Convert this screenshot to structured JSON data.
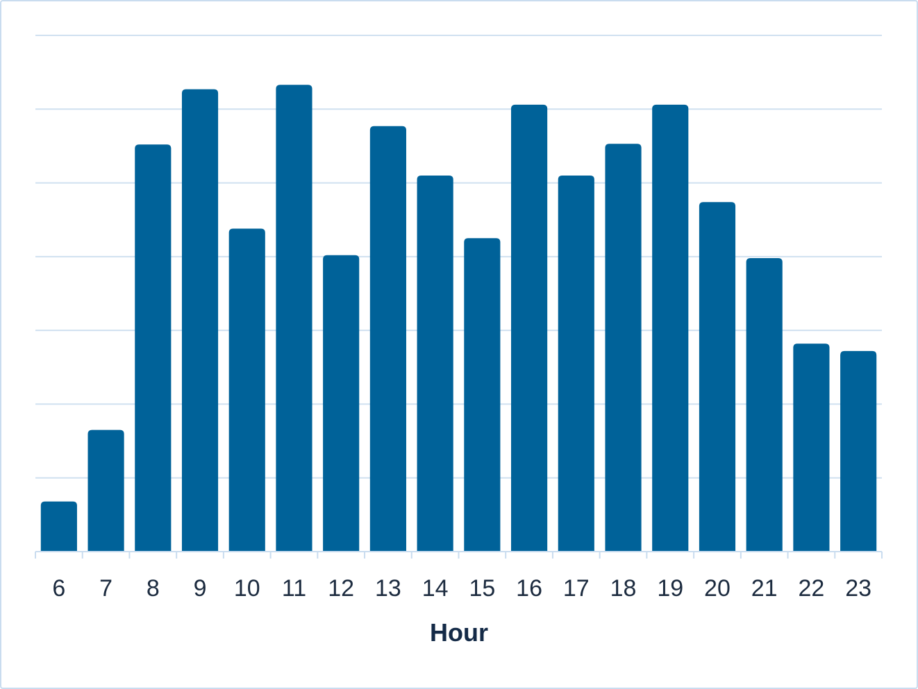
{
  "colors": {
    "bar": "#006299",
    "grid": "#cfe0f0",
    "axis": "#c9dcef",
    "frame": "#c9dcef"
  },
  "chart_data": {
    "type": "bar",
    "title": "",
    "xlabel": "Hour",
    "ylabel": "",
    "categories": [
      "6",
      "7",
      "8",
      "9",
      "10",
      "11",
      "12",
      "13",
      "14",
      "15",
      "16",
      "17",
      "18",
      "19",
      "20",
      "21",
      "22",
      "23"
    ],
    "series": [
      {
        "values": [
          68,
          165,
          552,
          627,
          438,
          633,
          402,
          577,
          510,
          425,
          606,
          510,
          553,
          606,
          474,
          398,
          282,
          272
        ]
      }
    ],
    "ylim": [
      0,
      700
    ],
    "yticks": [
      0,
      100,
      200,
      300,
      400,
      500,
      600,
      700
    ],
    "y_tick_labels_shown": false,
    "grid": true,
    "legend": "none"
  }
}
